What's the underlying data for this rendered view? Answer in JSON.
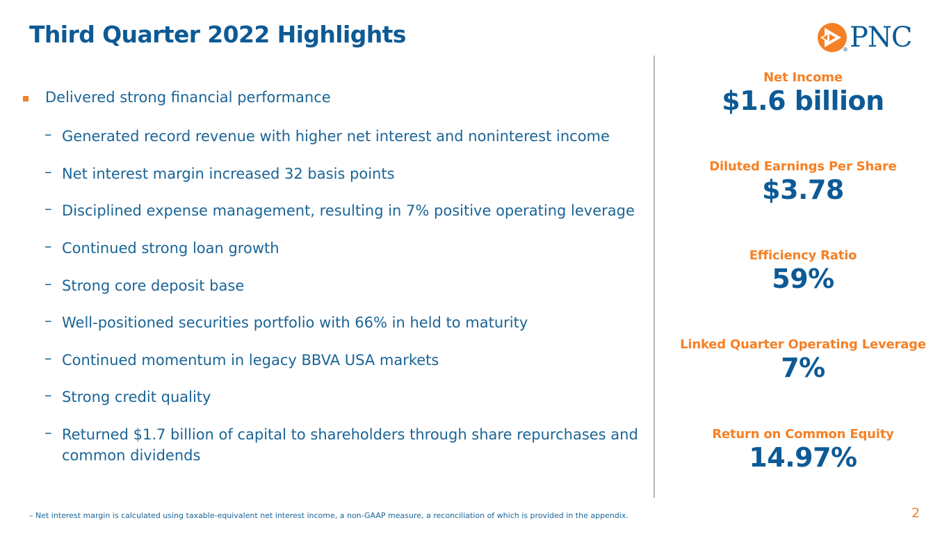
{
  "header": {
    "title": "Third Quarter 2022 Highlights",
    "logo_text": "PNC",
    "logo_mark": "®"
  },
  "highlights": {
    "main": "Delivered strong financial performance",
    "sub": [
      "Generated record revenue with higher net interest and noninterest income",
      "Net interest margin increased 32 basis points",
      "Disciplined expense management, resulting in 7% positive operating leverage",
      "Continued strong loan growth",
      "Strong core deposit base",
      "Well-positioned securities portfolio with 66% in held to maturity",
      "Continued momentum in legacy BBVA USA markets",
      "Strong credit quality",
      "Returned $1.7 billion of capital to shareholders through share repurchases and common dividends"
    ],
    "dash": "–"
  },
  "metrics": [
    {
      "label": "Net Income",
      "value": "$1.6 billion"
    },
    {
      "label": "Diluted Earnings Per Share",
      "value": "$3.78"
    },
    {
      "label": "Efficiency Ratio",
      "value": "59%"
    },
    {
      "label": "Linked Quarter Operating Leverage",
      "value": "7%"
    },
    {
      "label": "Return on Common Equity",
      "value": "14.97%"
    }
  ],
  "footer": {
    "footnote": "–  Net interest margin is calculated using taxable-equivalent net interest income, a non-GAAP measure, a reconciliation of which is provided in the appendix.",
    "page_number": "2"
  },
  "colors": {
    "brand_blue": "#0d5a95",
    "brand_orange": "#f58025",
    "divider": "#b5b5b5"
  },
  "icons": {
    "logo": "pnc-logo-icon",
    "bullet": "square-bullet-icon"
  }
}
